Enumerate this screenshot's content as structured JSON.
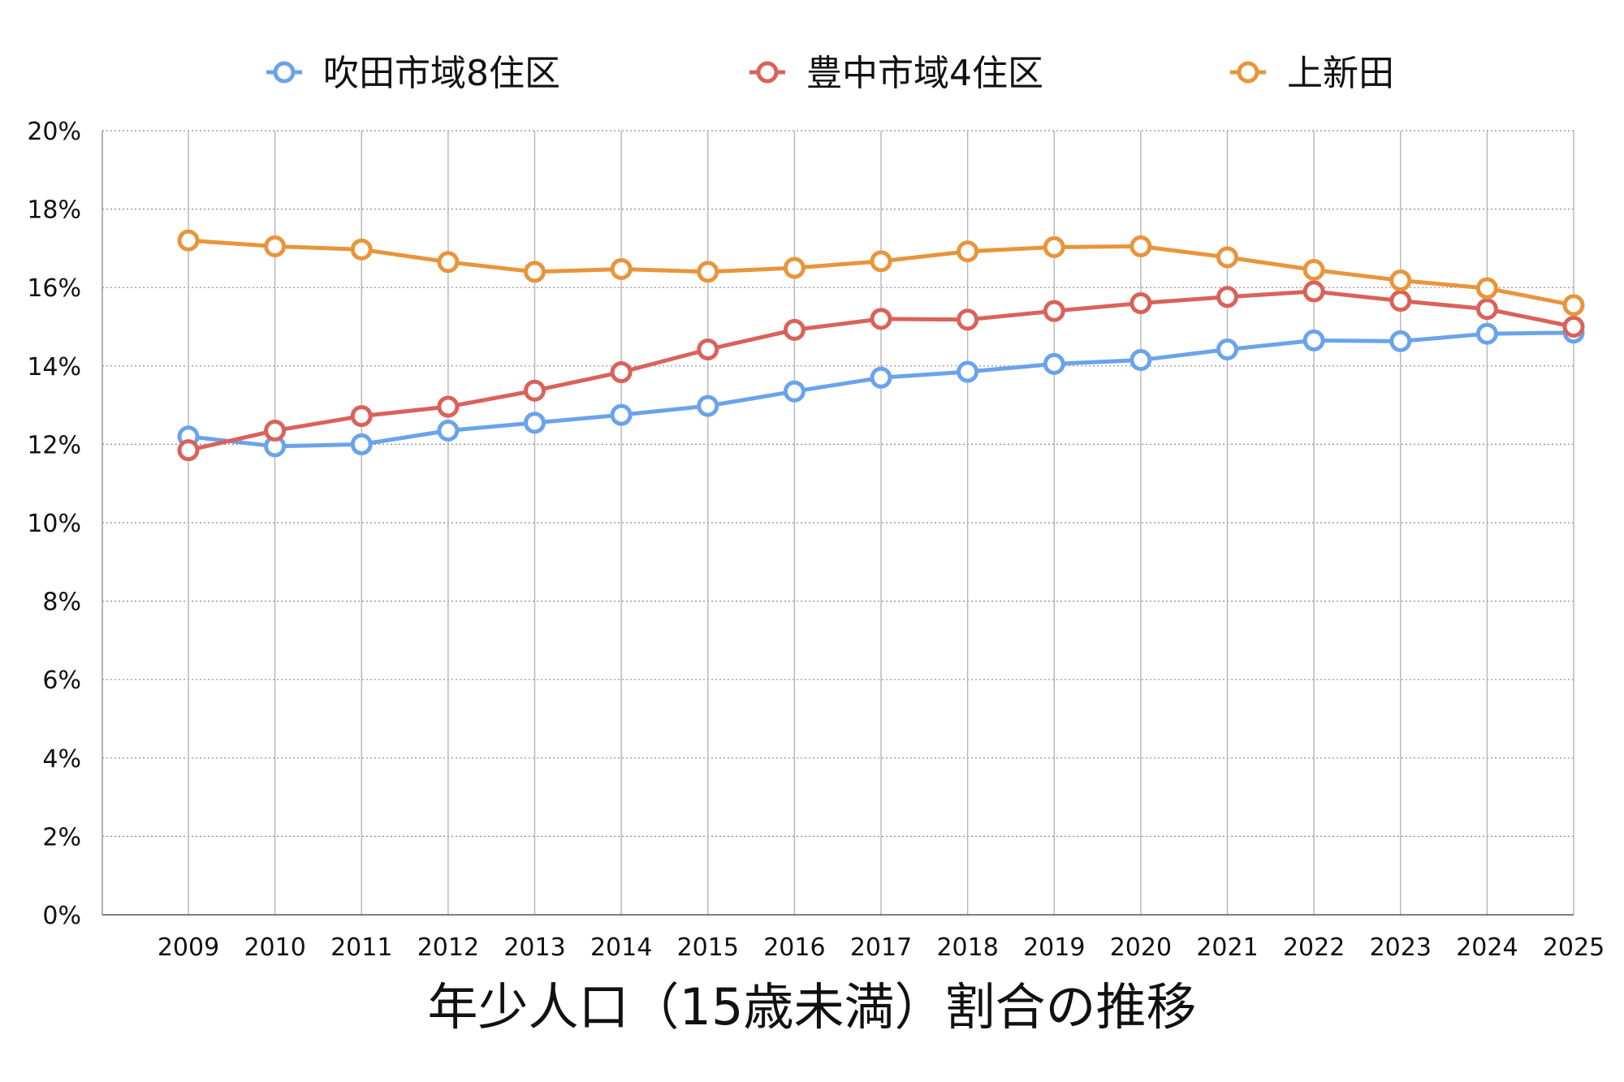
{
  "chart_data": {
    "type": "line",
    "title": "年少人口（15歳未満）割合の推移",
    "xlabel": "",
    "ylabel": "",
    "x": [
      "2009",
      "2010",
      "2011",
      "2012",
      "2013",
      "2014",
      "2015",
      "2016",
      "2017",
      "2018",
      "2019",
      "2020",
      "2021",
      "2022",
      "2023",
      "2024",
      "2025"
    ],
    "y_ticks": [
      "0%",
      "2%",
      "4%",
      "6%",
      "8%",
      "10%",
      "12%",
      "14%",
      "16%",
      "18%",
      "20%"
    ],
    "ylim": [
      0,
      20
    ],
    "y_unit": "%",
    "grid": true,
    "legend_position": "top",
    "series": [
      {
        "name": "吹田市域8住区",
        "color": "#6aa3ec",
        "values": [
          12.2,
          11.95,
          12.0,
          12.35,
          12.55,
          12.75,
          12.98,
          13.35,
          13.7,
          13.85,
          14.05,
          14.15,
          14.42,
          14.65,
          14.63,
          14.82,
          14.85
        ]
      },
      {
        "name": "豊中市域4住区",
        "color": "#d9625a",
        "values": [
          11.85,
          12.35,
          12.72,
          12.96,
          13.37,
          13.84,
          14.42,
          14.92,
          15.2,
          15.18,
          15.4,
          15.6,
          15.76,
          15.9,
          15.66,
          15.45,
          15.0
        ]
      },
      {
        "name": "上新田",
        "color": "#e8953a",
        "values": [
          17.2,
          17.05,
          16.97,
          16.65,
          16.4,
          16.47,
          16.4,
          16.5,
          16.67,
          16.92,
          17.03,
          17.05,
          16.77,
          16.45,
          16.18,
          15.98,
          15.55
        ]
      }
    ]
  }
}
